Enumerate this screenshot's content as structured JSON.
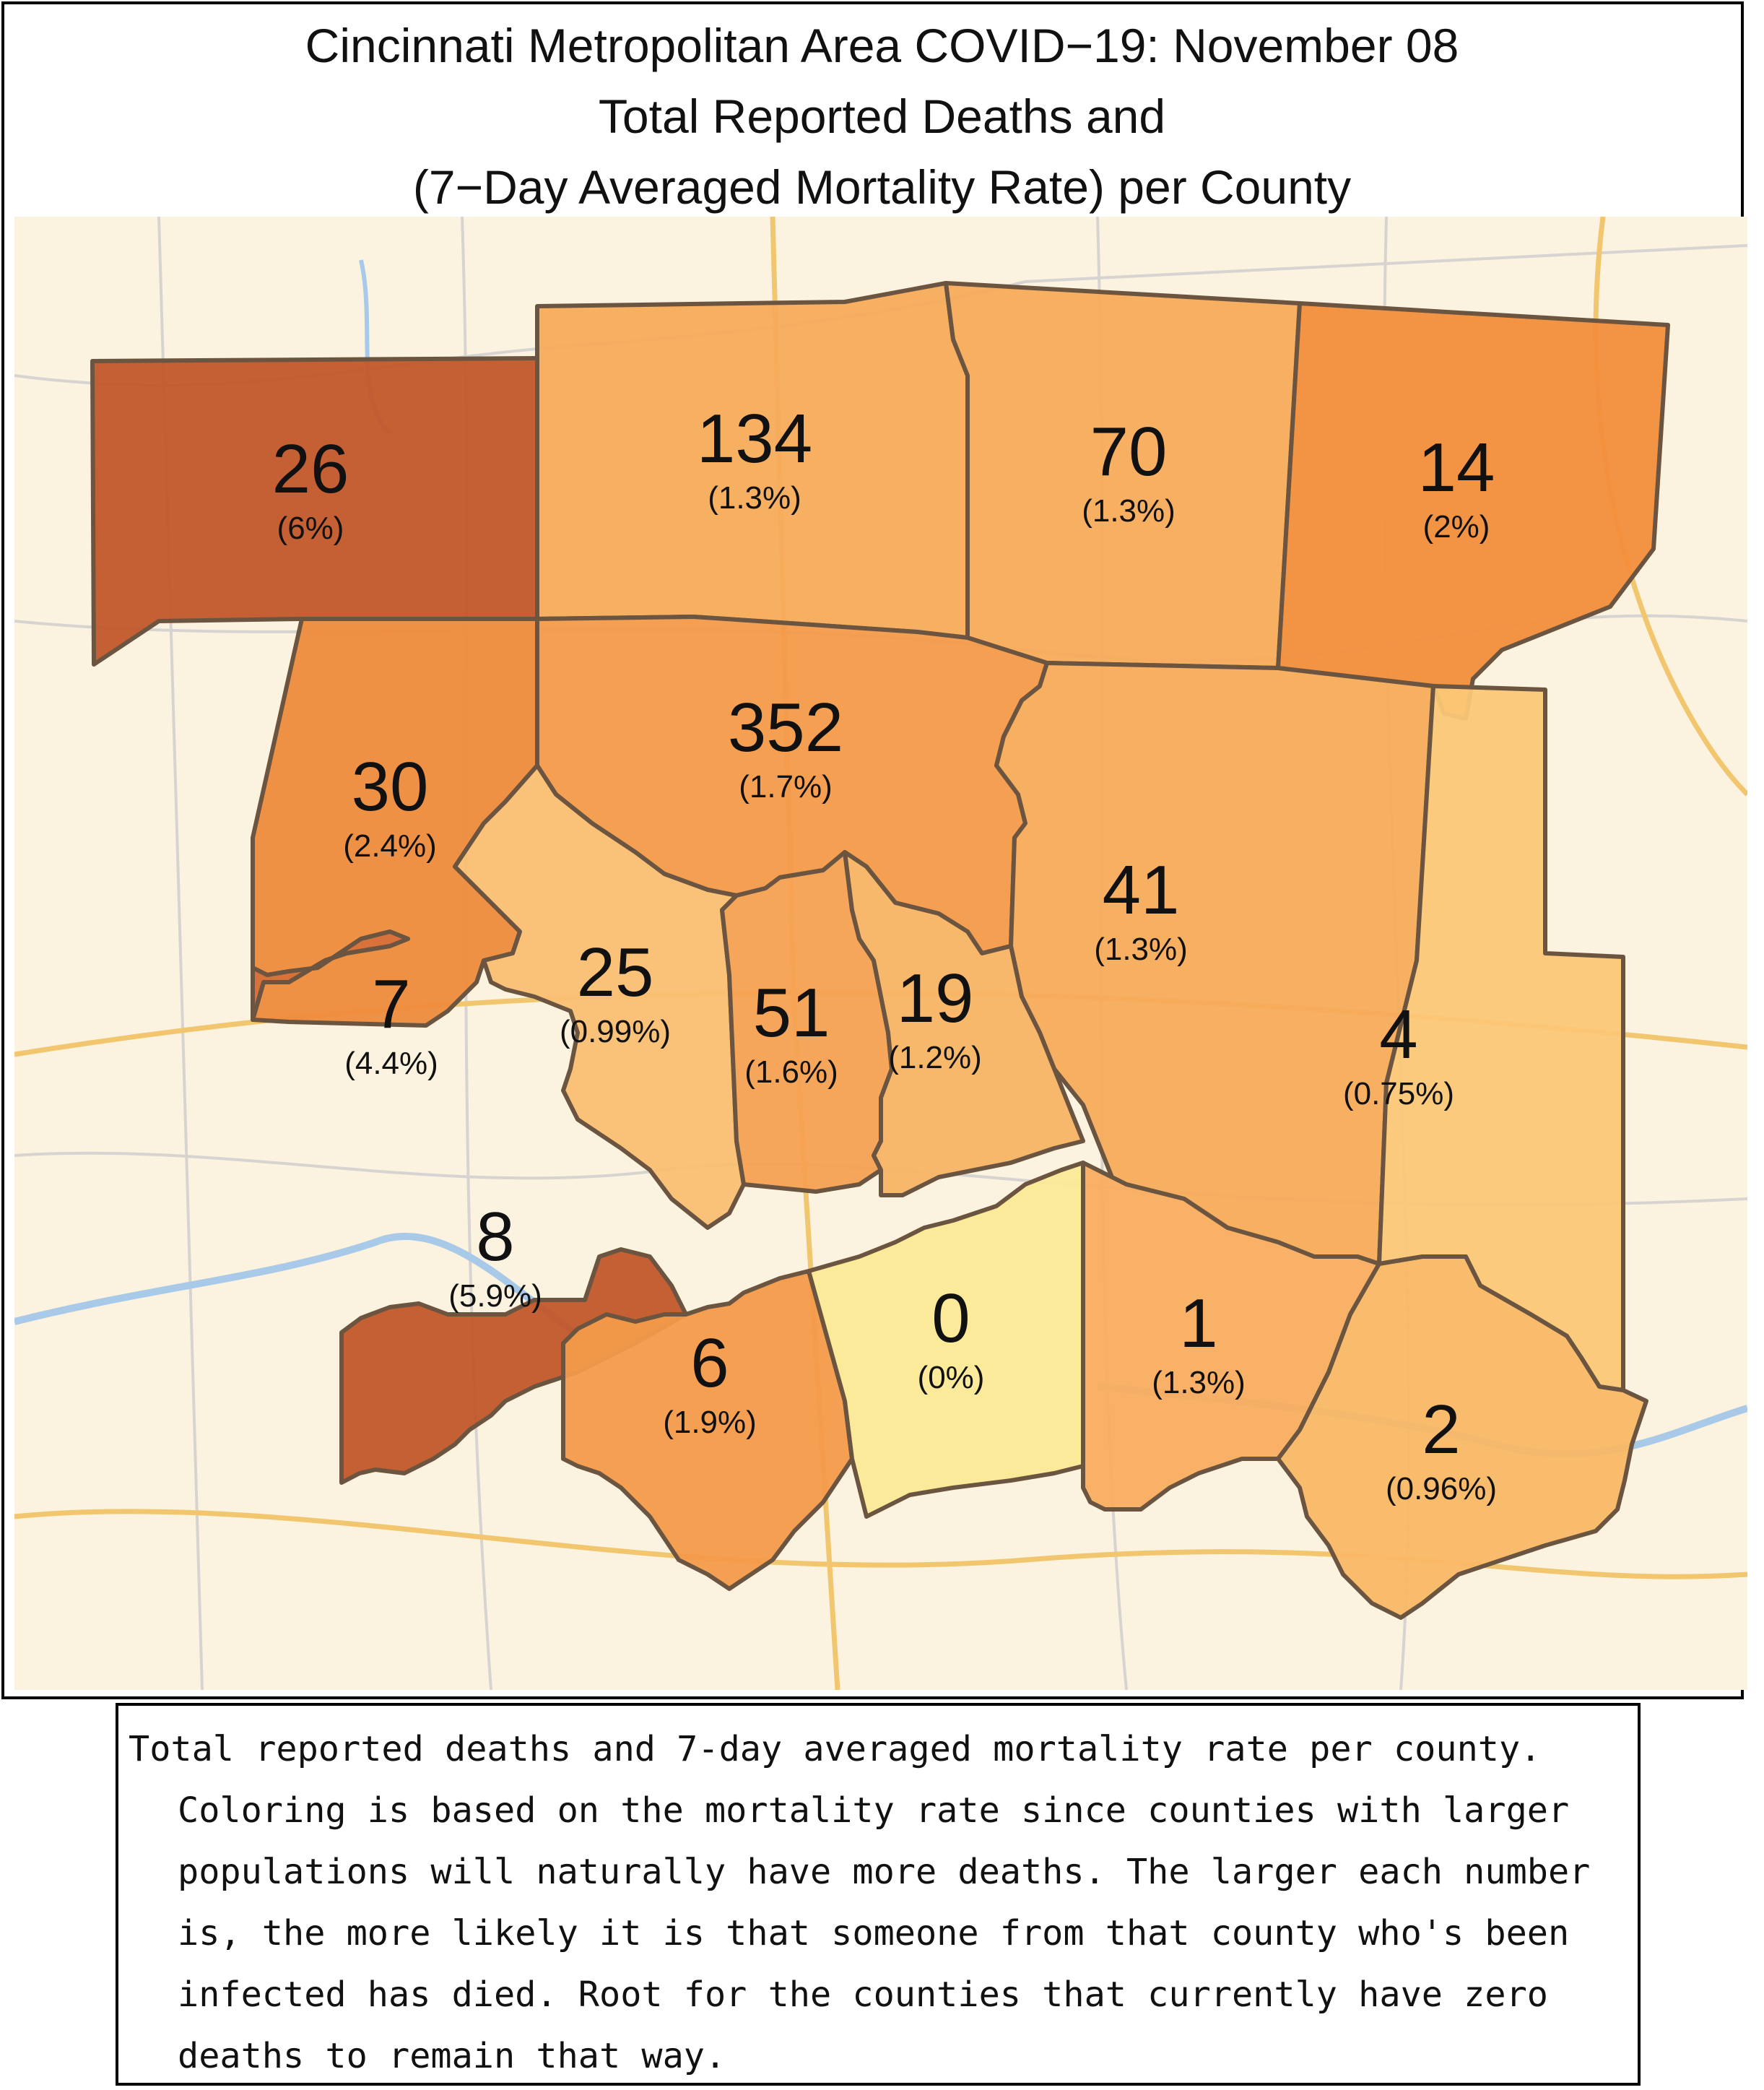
{
  "title": {
    "line1": "Cincinnati Metropolitan Area COVID−19: November 08",
    "line2": "Total Reported Deaths and",
    "line3": "(7−Day Averaged Mortality Rate) per County"
  },
  "colors": {
    "basemap": "#fbf3df",
    "roads_major": "#f2c66f",
    "roads_minor": "#d6d3d0",
    "river": "#a9c9e8",
    "border": "#6b5540"
  },
  "counties": [
    {
      "id": "nw",
      "deaths": "26",
      "rate": "(6%)",
      "color": "#c2572a"
    },
    {
      "id": "n1",
      "deaths": "134",
      "rate": "(1.3%)",
      "color": "#f7ab5b"
    },
    {
      "id": "n2",
      "deaths": "70",
      "rate": "(1.3%)",
      "color": "#f7ab5b"
    },
    {
      "id": "ne",
      "deaths": "14",
      "rate": "(2%)",
      "color": "#f28e3c"
    },
    {
      "id": "w",
      "deaths": "30",
      "rate": "(2.4%)",
      "color": "#ee8b3c"
    },
    {
      "id": "ham",
      "deaths": "352",
      "rate": "(1.7%)",
      "color": "#f39a4a"
    },
    {
      "id": "e1",
      "deaths": "41",
      "rate": "(1.3%)",
      "color": "#f7ab5b"
    },
    {
      "id": "e2",
      "deaths": "4",
      "rate": "(0.75%)",
      "color": "#fbc777"
    },
    {
      "id": "sw",
      "deaths": "7",
      "rate": "(4.4%)",
      "color": "#d66a30"
    },
    {
      "id": "boone",
      "deaths": "25",
      "rate": "(0.99%)",
      "color": "#f9bf72"
    },
    {
      "id": "kent",
      "deaths": "51",
      "rate": "(1.6%)",
      "color": "#f5a152"
    },
    {
      "id": "camp",
      "deaths": "19",
      "rate": "(1.2%)",
      "color": "#f8b465"
    },
    {
      "id": "gall",
      "deaths": "8",
      "rate": "(5.9%)",
      "color": "#c2572a"
    },
    {
      "id": "grant",
      "deaths": "6",
      "rate": "(1.9%)",
      "color": "#f39a4a"
    },
    {
      "id": "pend",
      "deaths": "0",
      "rate": "(0%)",
      "color": "#fbe996"
    },
    {
      "id": "brack",
      "deaths": "1",
      "rate": "(1.3%)",
      "color": "#f8ad5f"
    },
    {
      "id": "mason",
      "deaths": "2",
      "rate": "(0.96%)",
      "color": "#f9b866"
    }
  ],
  "caption": "Total reported deaths and 7-day averaged mortality rate per county. Coloring is based on the mortality rate since counties with larger populations will naturally have more deaths. The larger each number is, the more likely it is that someone from that county who's been infected has died. Root for the counties that currently have zero deaths to remain that way."
}
